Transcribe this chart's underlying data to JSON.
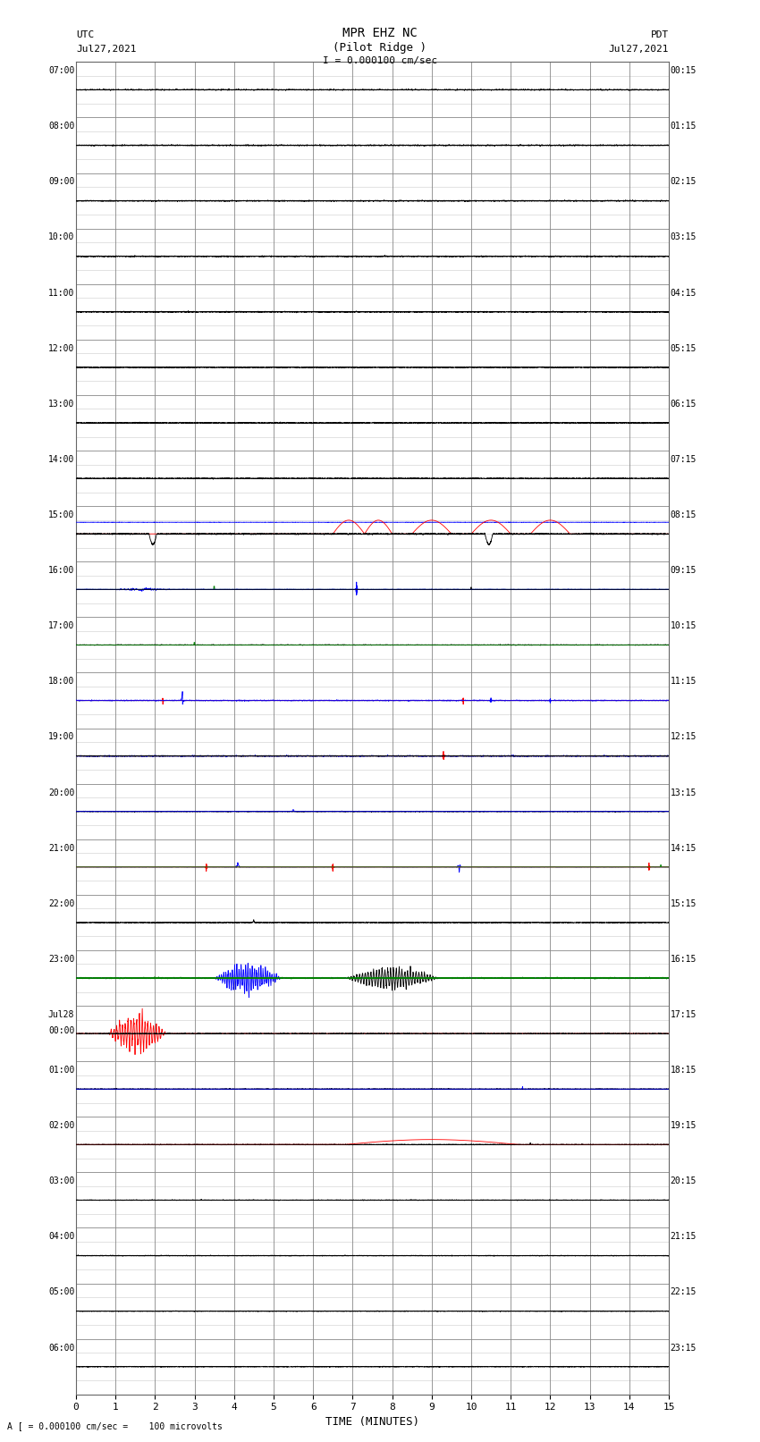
{
  "title_line1": "MPR EHZ NC",
  "title_line2": "(Pilot Ridge )",
  "title_scale": "I = 0.000100 cm/sec",
  "left_date1": "UTC",
  "left_date2": "Jul27,2021",
  "right_date1": "PDT",
  "right_date2": "Jul27,2021",
  "bottom_label": "TIME (MINUTES)",
  "bottom_note": "A [ = 0.000100 cm/sec =    100 microvolts",
  "utc_labels": [
    "07:00",
    "08:00",
    "09:00",
    "10:00",
    "11:00",
    "12:00",
    "13:00",
    "14:00",
    "15:00",
    "16:00",
    "17:00",
    "18:00",
    "19:00",
    "20:00",
    "21:00",
    "22:00",
    "23:00",
    "Jul28",
    "00:00",
    "01:00",
    "02:00",
    "03:00",
    "04:00",
    "05:00",
    "06:00",
    ""
  ],
  "pdt_labels": [
    "00:15",
    "01:15",
    "02:15",
    "03:15",
    "04:15",
    "05:15",
    "06:15",
    "07:15",
    "08:15",
    "09:15",
    "10:15",
    "11:15",
    "12:15",
    "13:15",
    "14:15",
    "15:15",
    "16:15",
    "17:15",
    "18:15",
    "19:15",
    "20:15",
    "21:15",
    "22:15",
    "23:15"
  ],
  "num_rows": 24,
  "x_min": 0,
  "x_max": 15,
  "bg_color": "#ffffff",
  "major_grid_color": "#888888",
  "minor_grid_color": "#cccccc",
  "sub_divisions": 4
}
